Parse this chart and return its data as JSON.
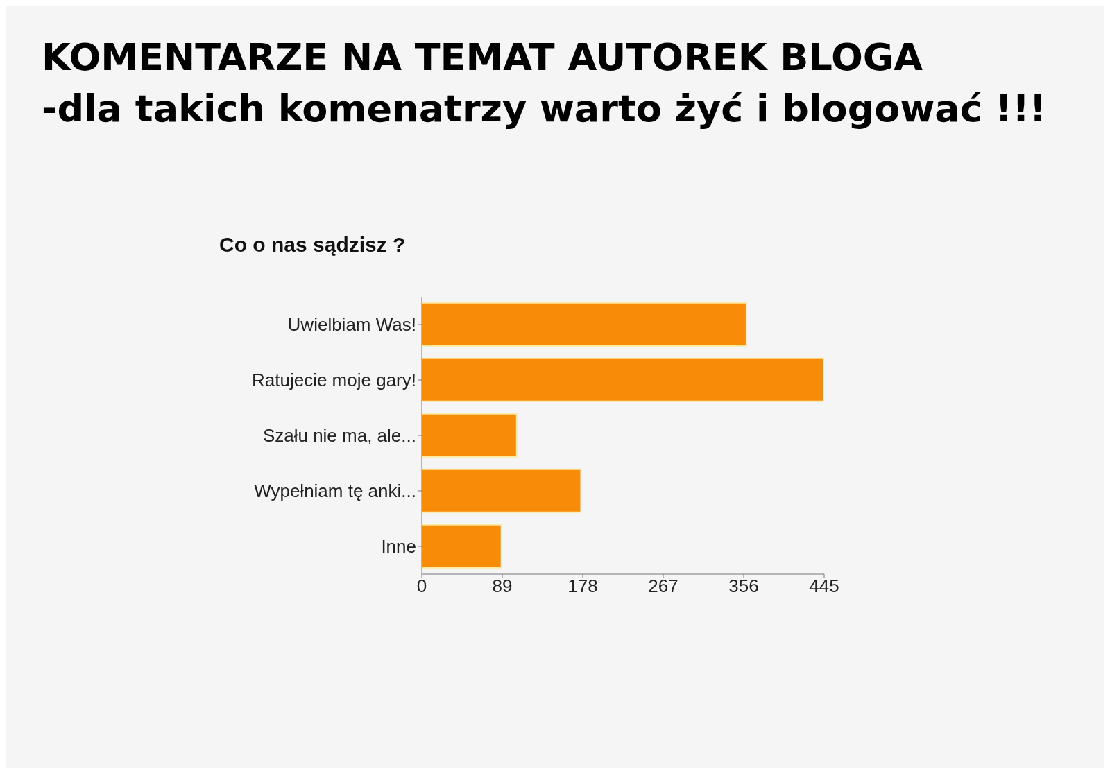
{
  "chart_data": {
    "type": "bar",
    "orientation": "horizontal",
    "title": "KOMENTARZE NA TEMAT AUTOREK BLOGA\n-dla takich komenatrzy warto żyć i blogować !!!",
    "subtitle": "Co o nas sądzisz ?",
    "categories": [
      "Uwielbiam Was!",
      "Ratujecie moje gary!",
      "Szału nie ma, ale...",
      "Wypełniam tę anki...",
      "Inne"
    ],
    "values": [
      359,
      445,
      105,
      176,
      88
    ],
    "color": "#f88b08",
    "xlim": [
      0,
      445
    ],
    "xticks": [
      0,
      89,
      178,
      267,
      356,
      445
    ]
  }
}
